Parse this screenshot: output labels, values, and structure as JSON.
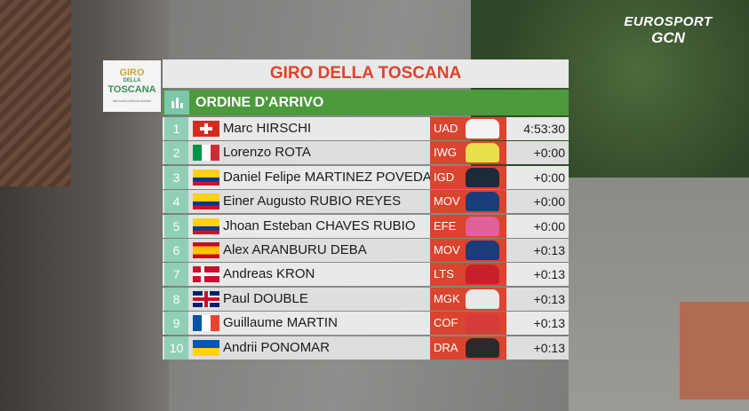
{
  "broadcaster": {
    "name": "EUROSPORT",
    "channel": "GCN"
  },
  "race_logo": {
    "lines": [
      "GIRO",
      "DELLA",
      "TOSCANA",
      "Memorial Alfredo Martini"
    ]
  },
  "header": {
    "title": "GIRO DELLA TOSCANA",
    "subtitle": "ORDINE D'ARRIVO"
  },
  "table": {
    "rows": [
      [
        "1",
        "Marc HIRSCHI",
        "UAD",
        "4:53:30"
      ],
      [
        "2",
        "Lorenzo ROTA",
        "IWG",
        "+0:00"
      ],
      [
        "3",
        "Daniel Felipe MARTINEZ POVEDA",
        "IGD",
        "+0:00"
      ],
      [
        "4",
        "Einer Augusto RUBIO REYES",
        "MOV",
        "+0:00"
      ],
      [
        "5",
        "Jhoan Esteban CHAVES RUBIO",
        "EFE",
        "+0:00"
      ],
      [
        "6",
        "Alex ARANBURU DEBA",
        "MOV",
        "+0:13"
      ],
      [
        "7",
        "Andreas KRON",
        "LTS",
        "+0:13"
      ],
      [
        "8",
        "Paul DOUBLE",
        "MGK",
        "+0:13"
      ],
      [
        "9",
        "Guillaume MARTIN",
        "COF",
        "+0:13"
      ],
      [
        "10",
        "Andrii PONOMAR",
        "DRA",
        "+0:13"
      ]
    ]
  }
}
